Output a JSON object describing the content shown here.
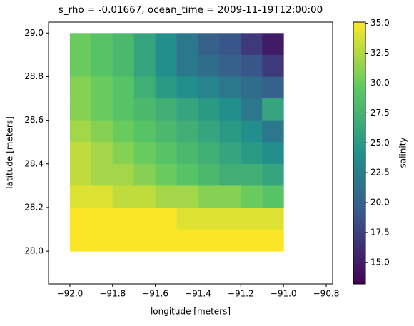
{
  "chart_data": {
    "type": "heatmap",
    "title": "s_rho = -0.01667, ocean_time = 2009-11-19T12:00:00",
    "x_label": "longitude [meters]",
    "y_label": "latitude [meters]",
    "colorbar_label": "salinity",
    "colormap": "viridis",
    "x": [
      -91.95,
      -91.85,
      -91.75,
      -91.65,
      -91.55,
      -91.45,
      -91.35,
      -91.25,
      -91.15,
      -91.05
    ],
    "y": [
      28.95,
      28.85,
      28.75,
      28.65,
      28.55,
      28.45,
      28.35,
      28.25,
      28.15,
      28.05
    ],
    "values": [
      [
        30,
        29,
        28,
        26,
        24,
        22,
        20,
        19,
        17,
        15
      ],
      [
        30,
        29,
        28,
        26,
        24,
        22,
        21,
        20,
        19,
        17
      ],
      [
        31,
        30,
        29,
        27,
        25,
        24,
        23,
        22,
        21,
        20
      ],
      [
        31,
        30,
        29,
        28,
        27,
        26,
        25,
        24,
        22,
        26
      ],
      [
        32,
        31,
        30,
        29,
        28,
        27,
        26,
        25,
        24,
        22
      ],
      [
        33,
        32,
        31,
        30,
        29,
        28,
        27,
        26,
        25,
        24
      ],
      [
        33,
        32,
        32,
        31,
        30,
        29,
        28,
        27,
        27,
        26
      ],
      [
        34,
        34,
        33,
        33,
        32,
        32,
        31,
        31,
        30,
        29
      ],
      [
        35,
        35,
        35,
        35,
        35,
        34,
        34,
        34,
        34,
        34
      ],
      [
        35,
        35,
        35,
        35,
        35,
        35,
        35,
        35,
        35,
        35
      ]
    ],
    "xlim": [
      -92.1,
      -90.77
    ],
    "ylim": [
      27.85,
      29.05
    ],
    "clim": [
      13.2,
      35.1
    ],
    "xticks": [
      {
        "value": -92.0,
        "label": "−92.0"
      },
      {
        "value": -91.8,
        "label": "−91.8"
      },
      {
        "value": -91.6,
        "label": "−91.6"
      },
      {
        "value": -91.4,
        "label": "−91.4"
      },
      {
        "value": -91.2,
        "label": "−91.2"
      },
      {
        "value": -91.0,
        "label": "−91.0"
      },
      {
        "value": -90.8,
        "label": "−90.8"
      }
    ],
    "yticks": [
      {
        "value": 28.0,
        "label": "28.0"
      },
      {
        "value": 28.2,
        "label": "28.2"
      },
      {
        "value": 28.4,
        "label": "28.4"
      },
      {
        "value": 28.6,
        "label": "28.6"
      },
      {
        "value": 28.8,
        "label": "28.8"
      },
      {
        "value": 29.0,
        "label": "29.0"
      }
    ],
    "cticks": [
      {
        "value": 15,
        "label": "15.0"
      },
      {
        "value": 17.5,
        "label": "17.5"
      },
      {
        "value": 20,
        "label": "20.0"
      },
      {
        "value": 22.5,
        "label": "22.5"
      },
      {
        "value": 25,
        "label": "25.0"
      },
      {
        "value": 27.5,
        "label": "27.5"
      },
      {
        "value": 30,
        "label": "30.0"
      },
      {
        "value": 32.5,
        "label": "32.5"
      },
      {
        "value": 35,
        "label": "35.0"
      }
    ]
  }
}
